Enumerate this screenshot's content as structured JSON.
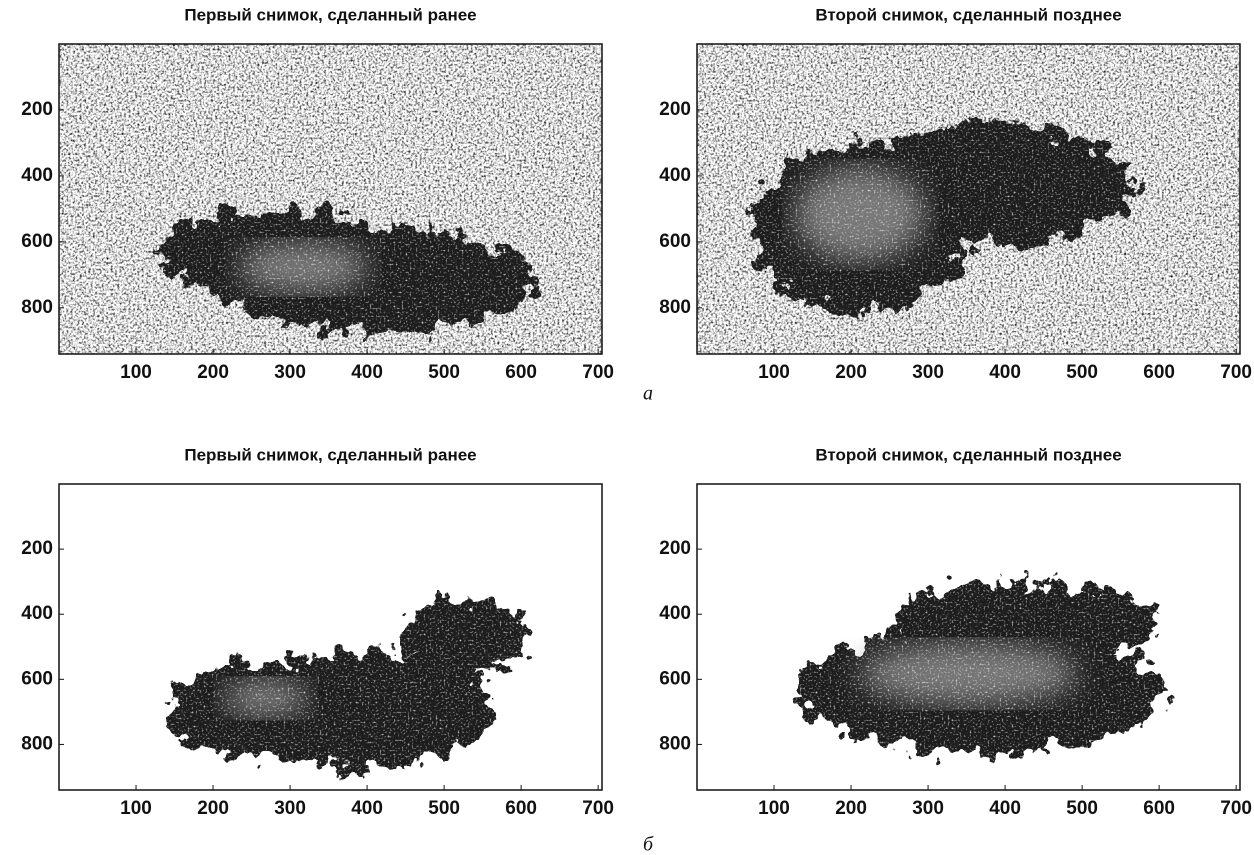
{
  "chart_data": [
    {
      "type": "image",
      "title": "Первый снимок, сделанный ранее",
      "xlim": [
        0,
        705
      ],
      "ylim": [
        0,
        940
      ],
      "xticks": [
        100,
        200,
        300,
        400,
        500,
        600,
        700
      ],
      "yticks": [
        200,
        400,
        600,
        800
      ]
    },
    {
      "type": "image",
      "title": "Второй снимок, сделанный позднее",
      "xlim": [
        0,
        705
      ],
      "ylim": [
        0,
        940
      ],
      "xticks": [
        100,
        200,
        300,
        400,
        500,
        600,
        700
      ],
      "yticks": [
        200,
        400,
        600,
        800
      ]
    },
    {
      "type": "image",
      "title": "Первый снимок, сделанный ранее",
      "xlim": [
        0,
        705
      ],
      "ylim": [
        0,
        940
      ],
      "xticks": [
        100,
        200,
        300,
        400,
        500,
        600,
        700
      ],
      "yticks": [
        200,
        400,
        600,
        800
      ]
    },
    {
      "type": "image",
      "title": "Второй снимок, сделанный позднее",
      "xlim": [
        0,
        705
      ],
      "ylim": [
        0,
        940
      ],
      "xticks": [
        100,
        200,
        300,
        400,
        500,
        600,
        700
      ],
      "yticks": [
        200,
        400,
        600,
        800
      ]
    }
  ],
  "captions": [
    "а",
    "б"
  ]
}
